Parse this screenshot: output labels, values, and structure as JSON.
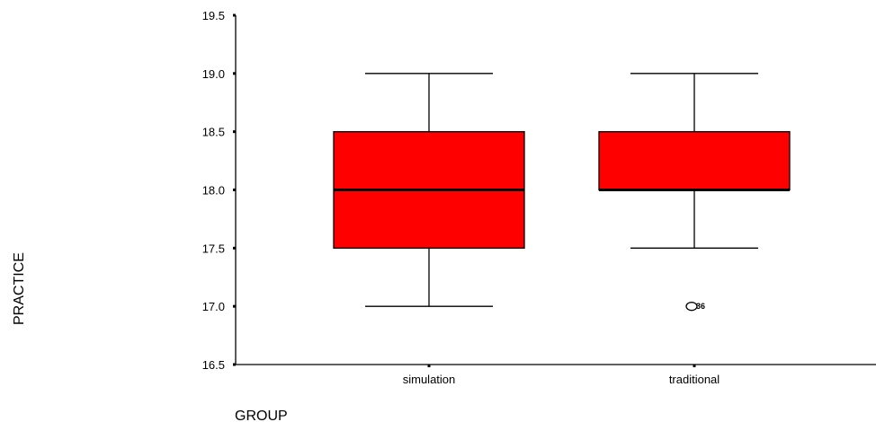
{
  "chart_data": {
    "type": "boxplot",
    "xlabel": "GROUP",
    "ylabel": "PRACTICE",
    "ylim": [
      16.5,
      19.5
    ],
    "yticks": [
      "16.5",
      "17.0",
      "17.5",
      "18.0",
      "18.5",
      "19.0",
      "19.5"
    ],
    "categories": [
      "simulation",
      "traditional"
    ],
    "boxes": [
      {
        "category": "simulation",
        "min": 17.0,
        "q1": 17.5,
        "median": 18.0,
        "q3": 18.5,
        "max": 19.0,
        "outliers": []
      },
      {
        "category": "traditional",
        "min": 17.5,
        "q1": 18.0,
        "median": 18.0,
        "q3": 18.5,
        "max": 19.0,
        "outliers": [
          {
            "value": 17.0,
            "label": "36"
          }
        ]
      }
    ],
    "box_color": "#ff0000",
    "grid": false,
    "legend": "none"
  }
}
